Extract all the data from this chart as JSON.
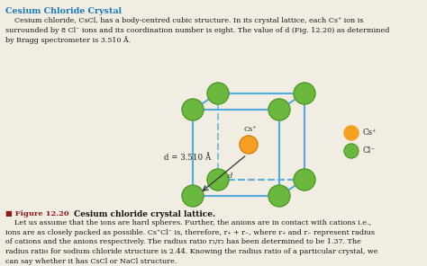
{
  "title": "Cesium Chloride Crystal",
  "title_color": "#1a7abf",
  "body_text1": "    Cesium chloride, CsCl, has a body-centred cubic structure. In its crystal lattice, each Cs⁺ ion is\nsurrounded by 8 Cl⁻ ions and its coordination number is eight. The value of d (Fig. 12.20) as determined\nby Bragg spectrometer is 3.510 Å.",
  "figure_label": "■ Figure 12.20",
  "figure_caption": "Cesium chloride crystal lattice.",
  "body_text2": "    Let us assume that the ions are hard spheres. Further, the anions are in contact with cations i.e.,\nions are as closely packed as possible. Cs⁺Cl⁻ is, therefore, r₊ + r₋, where r₊ and r₋ represent radius\nof cations and the anions respectively. The radius ratio r₁/r₂ has been determined to be 1.37. The\nradius ratio for sodium chloride structure is 2.44. Knowing the radius ratio of a particular crystal, we\ncan say whether it has CsCl or NaCl structure.",
  "bg_color": "#f2ede3",
  "cs_color": "#f5a020",
  "cl_color": "#6ab83e",
  "cl_dark": "#4a8a28",
  "cube_color": "#55aadd",
  "d_label": "d = 3.510 Å",
  "cs_label": "Cs⁺",
  "cl_label": "Cl⁻"
}
